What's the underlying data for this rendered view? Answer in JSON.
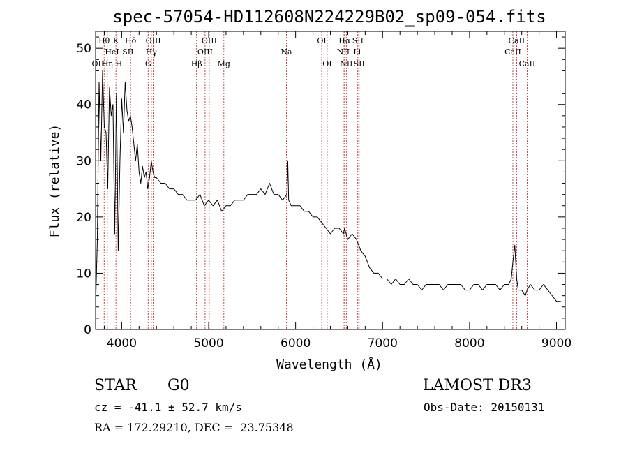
{
  "chart_data": {
    "type": "line",
    "title": "spec-57054-HD112608N224229B02_sp09-054.fits",
    "xlabel": "Wavelength (Å)",
    "ylabel": "Flux (relative)",
    "xlim": [
      3700,
      9100
    ],
    "ylim": [
      0,
      53
    ],
    "x_ticks": [
      4000,
      5000,
      6000,
      7000,
      8000,
      9000
    ],
    "y_ticks": [
      0,
      10,
      20,
      30,
      40,
      50
    ],
    "spectrum": {
      "x": [
        3700,
        3720,
        3740,
        3760,
        3780,
        3800,
        3820,
        3840,
        3860,
        3880,
        3900,
        3920,
        3940,
        3960,
        3980,
        4000,
        4020,
        4040,
        4060,
        4080,
        4100,
        4120,
        4140,
        4160,
        4180,
        4200,
        4220,
        4240,
        4260,
        4280,
        4300,
        4320,
        4340,
        4360,
        4380,
        4400,
        4450,
        4500,
        4550,
        4600,
        4650,
        4700,
        4750,
        4800,
        4850,
        4900,
        4950,
        5000,
        5050,
        5100,
        5150,
        5200,
        5250,
        5300,
        5350,
        5400,
        5450,
        5500,
        5550,
        5600,
        5650,
        5700,
        5750,
        5800,
        5850,
        5900,
        5910,
        5920,
        5950,
        6000,
        6050,
        6100,
        6150,
        6200,
        6250,
        6300,
        6350,
        6400,
        6450,
        6500,
        6550,
        6563,
        6600,
        6650,
        6700,
        6750,
        6800,
        6850,
        6900,
        6950,
        7000,
        7050,
        7100,
        7150,
        7200,
        7250,
        7300,
        7350,
        7400,
        7450,
        7500,
        7550,
        7600,
        7650,
        7700,
        7750,
        7800,
        7850,
        7900,
        7950,
        8000,
        8050,
        8100,
        8150,
        8200,
        8250,
        8300,
        8350,
        8400,
        8450,
        8480,
        8498,
        8520,
        8542,
        8560,
        8600,
        8640,
        8662,
        8700,
        8750,
        8800,
        8850,
        8900,
        8950,
        9000,
        9050
      ],
      "y": [
        4,
        16,
        44,
        30,
        46,
        36,
        35,
        25,
        43,
        38,
        40,
        17,
        42,
        14,
        30,
        41,
        35,
        44,
        39,
        37,
        38,
        36,
        33,
        30,
        33,
        28,
        26,
        29,
        27,
        28,
        25,
        27,
        30,
        28,
        27,
        27,
        26,
        26,
        25,
        25,
        24,
        24,
        23,
        23,
        23,
        24,
        22,
        23,
        22,
        23,
        21,
        22,
        22,
        23,
        23,
        23,
        24,
        24,
        24,
        25,
        24,
        26,
        24,
        24,
        23,
        24,
        30,
        23,
        22,
        22,
        22,
        21,
        21,
        20,
        20,
        19,
        18,
        17,
        18,
        18,
        17,
        18,
        16,
        17,
        16,
        14,
        13,
        11,
        10,
        10,
        9,
        9,
        8,
        9,
        8,
        8,
        9,
        8,
        8,
        7,
        8,
        8,
        8,
        8,
        7,
        8,
        8,
        8,
        8,
        7,
        7,
        8,
        8,
        7,
        8,
        8,
        8,
        7,
        8,
        8,
        9,
        12,
        15,
        9,
        7,
        7,
        6,
        7,
        8,
        7,
        7,
        8,
        7,
        6,
        5,
        5
      ]
    },
    "spectral_lines": [
      {
        "label": "OII",
        "wavelength": 3727,
        "row": 3
      },
      {
        "label": "Hθ",
        "wavelength": 3798,
        "row": 1
      },
      {
        "label": "Hη",
        "wavelength": 3835,
        "row": 3
      },
      {
        "label": "HeI",
        "wavelength": 3889,
        "row": 2
      },
      {
        "label": "K",
        "wavelength": 3934,
        "row": 1
      },
      {
        "label": "H",
        "wavelength": 3968,
        "row": 3
      },
      {
        "label": "SII",
        "wavelength": 4072,
        "row": 2
      },
      {
        "label": "Hδ",
        "wavelength": 4102,
        "row": 1
      },
      {
        "label": "G",
        "wavelength": 4304,
        "row": 3
      },
      {
        "label": "Hγ",
        "wavelength": 4341,
        "row": 2
      },
      {
        "label": "OIII",
        "wavelength": 4363,
        "row": 1
      },
      {
        "label": "Hβ",
        "wavelength": 4861,
        "row": 3
      },
      {
        "label": "OIII",
        "wavelength": 4959,
        "row": 2
      },
      {
        "label": "OIII",
        "wavelength": 5007,
        "row": 1
      },
      {
        "label": "Mg",
        "wavelength": 5175,
        "row": 3
      },
      {
        "label": "Na",
        "wavelength": 5894,
        "row": 2
      },
      {
        "label": "OI",
        "wavelength": 6300,
        "row": 1
      },
      {
        "label": "OI",
        "wavelength": 6363,
        "row": 3
      },
      {
        "label": "NII",
        "wavelength": 6548,
        "row": 2
      },
      {
        "label": "Hα",
        "wavelength": 6563,
        "row": 1
      },
      {
        "label": "NII",
        "wavelength": 6583,
        "row": 3
      },
      {
        "label": "Li",
        "wavelength": 6707,
        "row": 2
      },
      {
        "label": "SII",
        "wavelength": 6716,
        "row": 1
      },
      {
        "label": "SII",
        "wavelength": 6731,
        "row": 3
      },
      {
        "label": "CaII",
        "wavelength": 8498,
        "row": 2
      },
      {
        "label": "CaII",
        "wavelength": 8542,
        "row": 1
      },
      {
        "label": "CaII",
        "wavelength": 8662,
        "row": 3
      }
    ]
  },
  "info": {
    "object_class": "STAR",
    "subclass": "G0",
    "survey": "LAMOST DR3",
    "redshift_line": "cz = -41.1 ± 52.7 km/s",
    "obs_date": "Obs-Date: 20150131",
    "coords": "RA = 172.29210, DEC =  23.75348"
  }
}
